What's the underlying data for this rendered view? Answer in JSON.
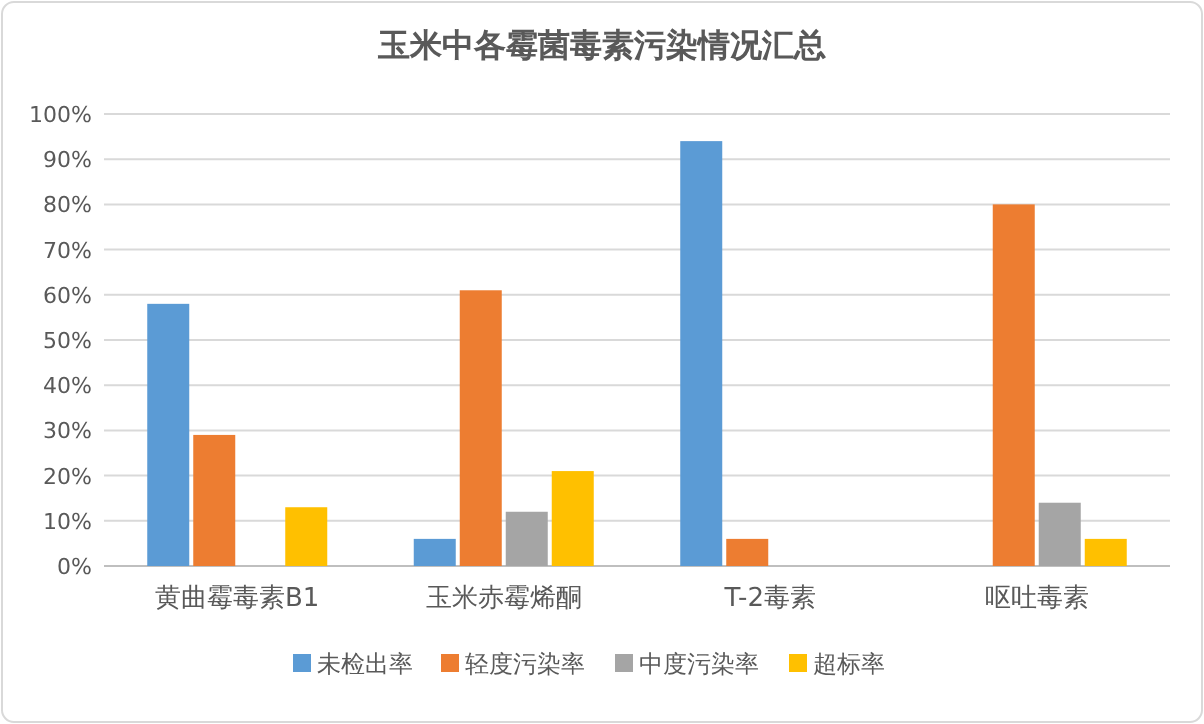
{
  "chart_data": {
    "type": "bar",
    "title": "玉米中各霉菌毒素污染情况汇总",
    "categories": [
      "黄曲霉毒素B1",
      "玉米赤霉烯酮",
      "T-2毒素",
      "呕吐毒素"
    ],
    "series": [
      {
        "name": "未检出率",
        "color": "#5b9bd5",
        "values": [
          58,
          6,
          94,
          0
        ]
      },
      {
        "name": "轻度污染率",
        "color": "#ed7d31",
        "values": [
          29,
          61,
          6,
          80
        ]
      },
      {
        "name": "中度污染率",
        "color": "#a5a5a5",
        "values": [
          0,
          12,
          0,
          14
        ]
      },
      {
        "name": "超标率",
        "color": "#ffc000",
        "values": [
          13,
          21,
          0,
          6
        ]
      }
    ],
    "ylim": [
      0,
      100
    ],
    "yticks": [
      {
        "value": 0,
        "label": "0%"
      },
      {
        "value": 10,
        "label": "10%"
      },
      {
        "value": 20,
        "label": "20%"
      },
      {
        "value": 30,
        "label": "30%"
      },
      {
        "value": 40,
        "label": "40%"
      },
      {
        "value": 50,
        "label": "50%"
      },
      {
        "value": 60,
        "label": "60%"
      },
      {
        "value": 70,
        "label": "70%"
      },
      {
        "value": 80,
        "label": "80%"
      },
      {
        "value": 90,
        "label": "90%"
      },
      {
        "value": 100,
        "label": "100%"
      }
    ],
    "grid": "y",
    "legend": "bottom"
  }
}
